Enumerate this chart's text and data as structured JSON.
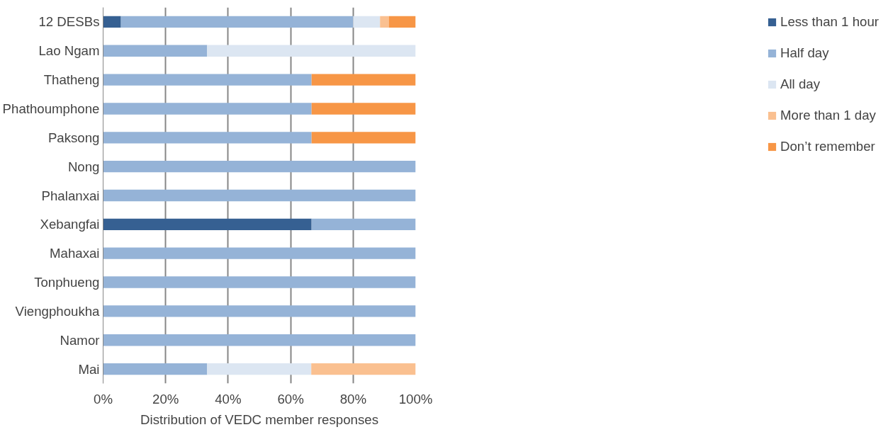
{
  "chart_data": {
    "type": "bar",
    "orientation": "horizontal",
    "stacked": true,
    "xlabel": "Distribution of VEDC member responses",
    "categories": [
      "12 DESBs",
      "Lao Ngam",
      "Thatheng",
      "Phathoumphone",
      "Paksong",
      "Nong",
      "Phalanxai",
      "Xebangfai",
      "Mahaxai",
      "Tonphueng",
      "Viengphoukha",
      "Namor",
      "Mai"
    ],
    "series": [
      {
        "name": "Less than 1 hour",
        "color": "#366092",
        "values": [
          5.7,
          null,
          null,
          null,
          null,
          null,
          null,
          66.7,
          null,
          null,
          null,
          null,
          null
        ]
      },
      {
        "name": "Half day",
        "color": "#95b3d7",
        "values": [
          74.3,
          33.3,
          66.7,
          66.7,
          66.7,
          100,
          100,
          33.3,
          100,
          100,
          100,
          100,
          33.3
        ]
      },
      {
        "name": "All day",
        "color": "#dce6f2",
        "values": [
          8.6,
          66.7,
          null,
          null,
          null,
          null,
          null,
          null,
          null,
          null,
          null,
          null,
          33.3
        ]
      },
      {
        "name": "More than 1 day",
        "color": "#fac090",
        "values": [
          2.8,
          null,
          null,
          null,
          null,
          null,
          null,
          null,
          null,
          null,
          null,
          null,
          33.4
        ]
      },
      {
        "name": "Don’t remember",
        "color": "#f79646",
        "values": [
          8.6,
          null,
          33.3,
          33.3,
          33.3,
          null,
          null,
          null,
          null,
          null,
          null,
          null,
          null
        ]
      }
    ],
    "xlim": [
      0,
      100
    ],
    "xticks": [
      {
        "value": 0,
        "label": "0%"
      },
      {
        "value": 20,
        "label": "20%"
      },
      {
        "value": 40,
        "label": "40%"
      },
      {
        "value": 60,
        "label": "60%"
      },
      {
        "value": 80,
        "label": "80%"
      },
      {
        "value": 100,
        "label": "100%"
      }
    ],
    "grid": "x",
    "legend": "right"
  }
}
